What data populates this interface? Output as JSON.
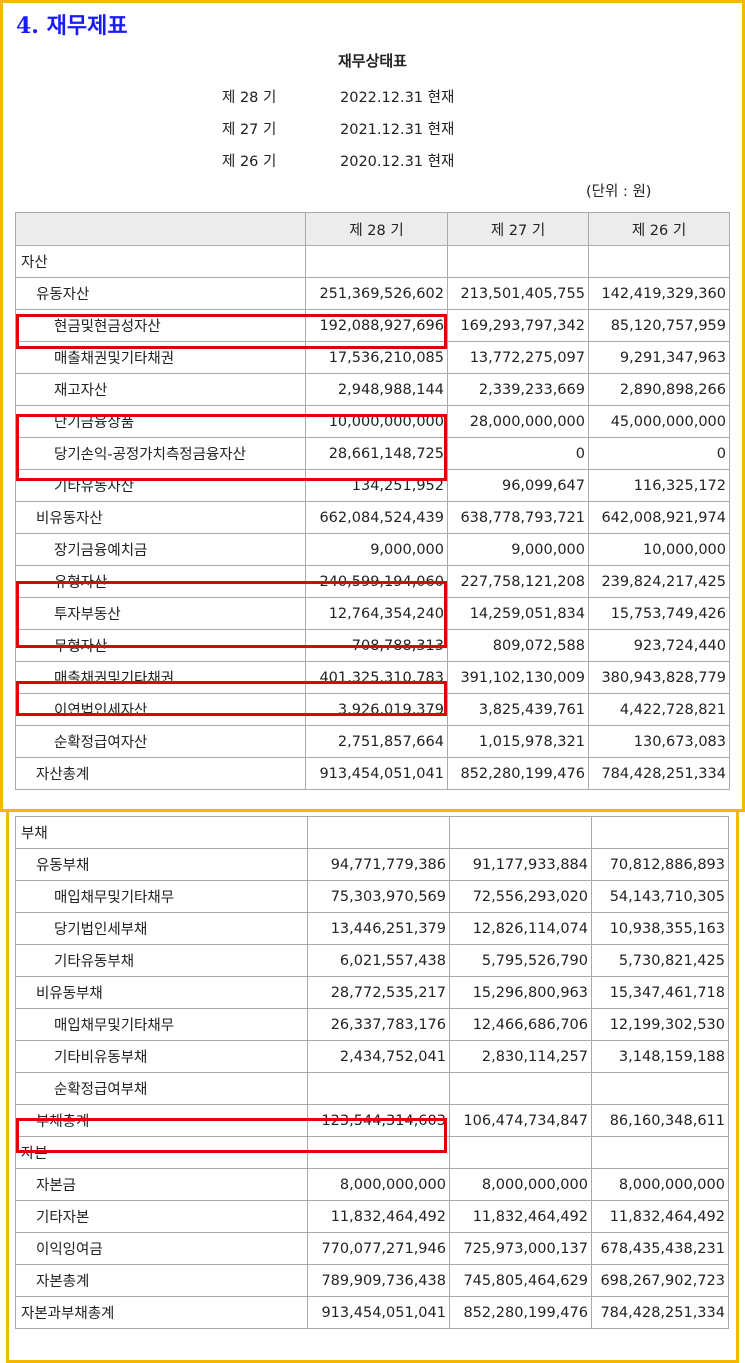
{
  "section_title": "4. 재무제표",
  "statement_title": "재무상태표",
  "periods": [
    {
      "label": "제 28 기",
      "date": "2022.12.31 현재"
    },
    {
      "label": "제 27 기",
      "date": "2021.12.31 현재"
    },
    {
      "label": "제 26 기",
      "date": "2020.12.31 현재"
    }
  ],
  "unit": "(단위 : 원)",
  "columns": [
    "제 28 기",
    "제 27 기",
    "제 26 기"
  ],
  "assets_rows": [
    {
      "label": "자산",
      "level": 0,
      "values": [
        "",
        "",
        ""
      ]
    },
    {
      "label": "유동자산",
      "level": 1,
      "values": [
        "251,369,526,602",
        "213,501,405,755",
        "142,419,329,360"
      ]
    },
    {
      "label": "현금및현금성자산",
      "level": 2,
      "values": [
        "192,088,927,696",
        "169,293,797,342",
        "85,120,757,959"
      ]
    },
    {
      "label": "매출채권및기타채권",
      "level": 2,
      "values": [
        "17,536,210,085",
        "13,772,275,097",
        "9,291,347,963"
      ]
    },
    {
      "label": "재고자산",
      "level": 2,
      "values": [
        "2,948,988,144",
        "2,339,233,669",
        "2,890,898,266"
      ]
    },
    {
      "label": "단기금융상품",
      "level": 2,
      "values": [
        "10,000,000,000",
        "28,000,000,000",
        "45,000,000,000"
      ]
    },
    {
      "label": "당기손익-공정가치측정금융자산",
      "level": 2,
      "values": [
        "28,661,148,725",
        "0",
        "0"
      ]
    },
    {
      "label": "기타유동자산",
      "level": 2,
      "values": [
        "134,251,952",
        "96,099,647",
        "116,325,172"
      ]
    },
    {
      "label": "비유동자산",
      "level": 1,
      "values": [
        "662,084,524,439",
        "638,778,793,721",
        "642,008,921,974"
      ]
    },
    {
      "label": "장기금융예치금",
      "level": 2,
      "values": [
        "9,000,000",
        "9,000,000",
        "10,000,000"
      ]
    },
    {
      "label": "유형자산",
      "level": 2,
      "values": [
        "240,599,194,060",
        "227,758,121,208",
        "239,824,217,425"
      ]
    },
    {
      "label": "투자부동산",
      "level": 2,
      "values": [
        "12,764,354,240",
        "14,259,051,834",
        "15,753,749,426"
      ]
    },
    {
      "label": "무형자산",
      "level": 2,
      "values": [
        "708,788,313",
        "809,072,588",
        "923,724,440"
      ]
    },
    {
      "label": "매출채권및기타채권",
      "level": 2,
      "values": [
        "401,325,310,783",
        "391,102,130,009",
        "380,943,828,779"
      ]
    },
    {
      "label": "이연법인세자산",
      "level": 2,
      "values": [
        "3,926,019,379",
        "3,825,439,761",
        "4,422,728,821"
      ]
    },
    {
      "label": "순확정급여자산",
      "level": 2,
      "values": [
        "2,751,857,664",
        "1,015,978,321",
        "130,673,083"
      ]
    },
    {
      "label": "자산총계",
      "level": 1,
      "values": [
        "913,454,051,041",
        "852,280,199,476",
        "784,428,251,334"
      ]
    }
  ],
  "liab_equity_rows": [
    {
      "label": "부채",
      "level": 0,
      "values": [
        "",
        "",
        ""
      ]
    },
    {
      "label": "유동부채",
      "level": 1,
      "values": [
        "94,771,779,386",
        "91,177,933,884",
        "70,812,886,893"
      ]
    },
    {
      "label": "매입채무및기타채무",
      "level": 2,
      "values": [
        "75,303,970,569",
        "72,556,293,020",
        "54,143,710,305"
      ]
    },
    {
      "label": "당기법인세부채",
      "level": 2,
      "values": [
        "13,446,251,379",
        "12,826,114,074",
        "10,938,355,163"
      ]
    },
    {
      "label": "기타유동부채",
      "level": 2,
      "values": [
        "6,021,557,438",
        "5,795,526,790",
        "5,730,821,425"
      ]
    },
    {
      "label": "비유동부채",
      "level": 1,
      "values": [
        "28,772,535,217",
        "15,296,800,963",
        "15,347,461,718"
      ]
    },
    {
      "label": "매입채무및기타채무",
      "level": 2,
      "values": [
        "26,337,783,176",
        "12,466,686,706",
        "12,199,302,530"
      ]
    },
    {
      "label": "기타비유동부채",
      "level": 2,
      "values": [
        "2,434,752,041",
        "2,830,114,257",
        "3,148,159,188"
      ]
    },
    {
      "label": "순확정급여부채",
      "level": 2,
      "values": [
        "",
        "",
        ""
      ]
    },
    {
      "label": "부채총계",
      "level": 1,
      "values": [
        "123,544,314,603",
        "106,474,734,847",
        "86,160,348,611"
      ]
    },
    {
      "label": "자본",
      "level": 0,
      "values": [
        "",
        "",
        ""
      ]
    },
    {
      "label": "자본금",
      "level": 1,
      "values": [
        "8,000,000,000",
        "8,000,000,000",
        "8,000,000,000"
      ]
    },
    {
      "label": "기타자본",
      "level": 1,
      "values": [
        "11,832,464,492",
        "11,832,464,492",
        "11,832,464,492"
      ]
    },
    {
      "label": "이익잉여금",
      "level": 1,
      "values": [
        "770,077,271,946",
        "725,973,000,137",
        "678,435,438,231"
      ]
    },
    {
      "label": "자본총계",
      "level": 1,
      "values": [
        "789,909,736,438",
        "745,805,464,629",
        "698,267,902,723"
      ]
    },
    {
      "label": "자본과부채총계",
      "level": 0,
      "values": [
        "913,454,051,041",
        "852,280,199,476",
        "784,428,251,334"
      ]
    }
  ],
  "colors": {
    "frame": "#f5b800",
    "highlight": "#e50000",
    "section_title": "#1a1aff",
    "header_bg": "#ececec"
  }
}
